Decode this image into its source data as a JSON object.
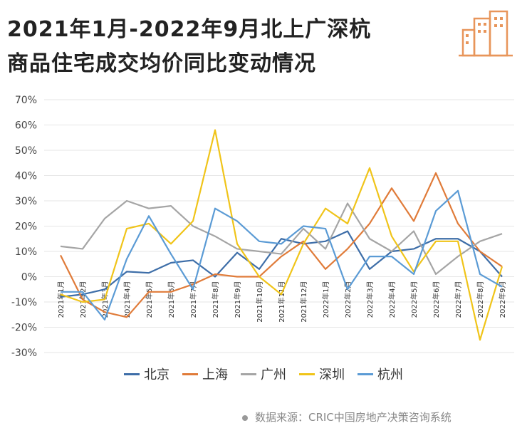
{
  "title_line1": "2021年1月-2022年9月北上广深杭",
  "title_line2": "商品住宅成交均价同比变动情况",
  "footer": "数据来源：CRIC中国房地产决策咨询系统",
  "chart_data": {
    "type": "line",
    "title": "2021年1月-2022年9月北上广深杭商品住宅成交均价同比变动情况",
    "xlabel": "",
    "ylabel": "",
    "ylim": [
      -30,
      70
    ],
    "yticks": [
      "70%",
      "60%",
      "50%",
      "40%",
      "30%",
      "20%",
      "10%",
      "0%",
      "-10%",
      "-20%",
      "-30%"
    ],
    "ytick_values": [
      70,
      60,
      50,
      40,
      30,
      20,
      10,
      0,
      -10,
      -20,
      -30
    ],
    "grid": true,
    "legend_position": "bottom",
    "categories": [
      "2021年1月",
      "2021年2月",
      "2021年3月",
      "2021年4月",
      "2021年5月",
      "2021年6月",
      "2021年7月",
      "2021年8月",
      "2021年9月",
      "2021年10月",
      "2021年11月",
      "2021年12月",
      "2022年1月",
      "2022年2月",
      "2022年3月",
      "2022年4月",
      "2022年5月",
      "2022年6月",
      "2022年7月",
      "2022年8月",
      "2022年9月"
    ],
    "series": [
      {
        "name": "北京",
        "color": "#3e6ea8",
        "values": [
          -8,
          -7,
          -5,
          2,
          1.5,
          5.5,
          6.5,
          0,
          9.5,
          3,
          15,
          13,
          14,
          18,
          3,
          10,
          11,
          15,
          15,
          10,
          0
        ]
      },
      {
        "name": "上海",
        "color": "#e07b39",
        "values": [
          8.5,
          -9,
          -14,
          -16,
          -6,
          -6,
          -3,
          1,
          0,
          0,
          8,
          14,
          3,
          11,
          21,
          35,
          22,
          41,
          21,
          10,
          4
        ]
      },
      {
        "name": "广州",
        "color": "#a5a5a5",
        "values": [
          12,
          11,
          23,
          30,
          27,
          28,
          20,
          16,
          11,
          10,
          9,
          19,
          11,
          29,
          15,
          10,
          18,
          1,
          8,
          14,
          17
        ]
      },
      {
        "name": "深圳",
        "color": "#f0c419",
        "values": [
          -7,
          -10,
          -9,
          19,
          21,
          13,
          22,
          58,
          13,
          0,
          -7,
          13,
          27,
          21,
          43,
          16,
          2,
          14,
          14,
          -25,
          4
        ]
      },
      {
        "name": "杭州",
        "color": "#5b9bd5",
        "values": [
          -6,
          -6,
          -17,
          7,
          24,
          9,
          -5,
          27,
          22,
          14,
          13,
          20,
          19,
          -5,
          8,
          8,
          1,
          26,
          34,
          1,
          -4
        ]
      }
    ]
  }
}
